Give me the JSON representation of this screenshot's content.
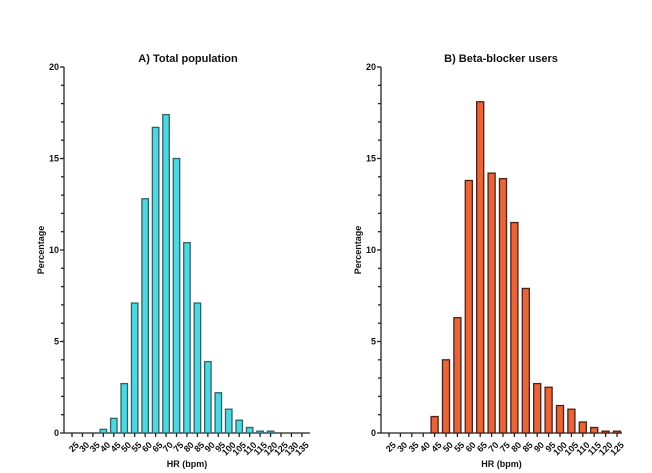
{
  "chart_data": [
    {
      "type": "bar",
      "title": "A) Total population",
      "xlabel": "HR (bpm)",
      "ylabel": "Percentage",
      "ylim": [
        0,
        20
      ],
      "yticks": [
        0,
        5,
        10,
        15,
        20
      ],
      "categories": [
        "25",
        "30",
        "35",
        "40",
        "45",
        "50",
        "55",
        "60",
        "65",
        "70",
        "75",
        "80",
        "85",
        "90",
        "95",
        "100",
        "105",
        "110",
        "115",
        "120",
        "125",
        "130",
        "135"
      ],
      "values": [
        0,
        0,
        0,
        0.2,
        0.8,
        2.7,
        7.1,
        12.8,
        16.7,
        17.4,
        15.0,
        10.4,
        7.1,
        3.9,
        2.2,
        1.3,
        0.7,
        0.3,
        0.1,
        0.1,
        0,
        0,
        0
      ],
      "fill_color": "#4fd6e0",
      "stroke_color": "#2a6468",
      "grid": false
    },
    {
      "type": "bar",
      "title": "B) Beta-blocker users",
      "xlabel": "HR (bpm)",
      "ylabel": "Percentage",
      "ylim": [
        0,
        20
      ],
      "yticks": [
        0,
        5,
        10,
        15,
        20
      ],
      "categories": [
        "25",
        "30",
        "35",
        "40",
        "45",
        "50",
        "55",
        "60",
        "65",
        "70",
        "75",
        "80",
        "85",
        "90",
        "95",
        "100",
        "105",
        "110",
        "115",
        "120",
        "125"
      ],
      "values": [
        0,
        0,
        0,
        0,
        0.9,
        4.0,
        6.3,
        13.8,
        18.1,
        14.2,
        13.9,
        11.5,
        7.9,
        2.7,
        2.5,
        1.5,
        1.3,
        0.6,
        0.3,
        0.1,
        0.1
      ],
      "fill_color": "#e8653a",
      "stroke_color": "#4f1f14",
      "grid": false
    }
  ]
}
